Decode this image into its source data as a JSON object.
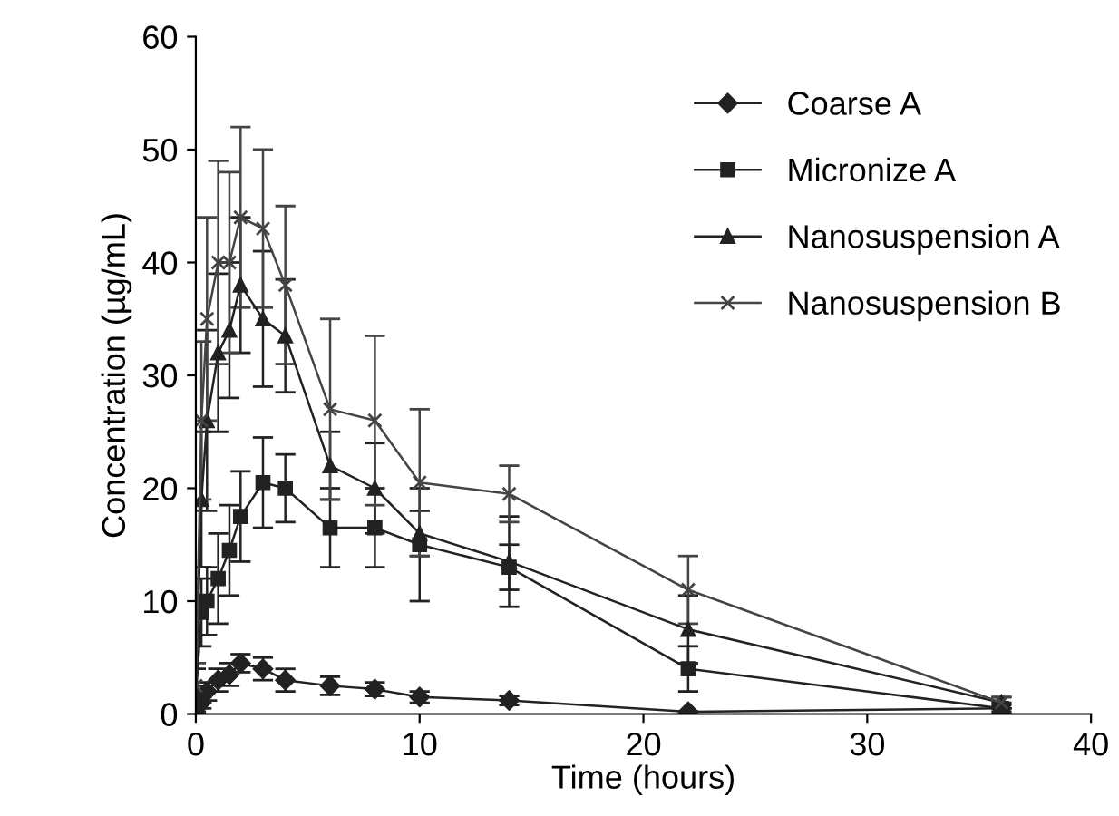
{
  "chart_data": {
    "type": "line",
    "xlabel": "Time (hours)",
    "ylabel": "Concentration (µg/mL)",
    "x": [
      0,
      0.25,
      0.5,
      1,
      1.5,
      2,
      3,
      4,
      6,
      8,
      10,
      14,
      22,
      36
    ],
    "series": [
      {
        "name": "Coarse A",
        "color": "#222222",
        "marker": "diamond",
        "values": [
          0.5,
          1,
          2,
          3,
          3.5,
          4.5,
          4,
          3,
          2.5,
          2.2,
          1.5,
          1.2,
          0.2,
          0.5
        ],
        "errors": [
          0.3,
          0.5,
          0.8,
          1,
          1,
          0.8,
          1,
          1,
          0.8,
          0.6,
          0.5,
          0.4,
          null,
          0.3
        ]
      },
      {
        "name": "Micronize A",
        "color": "#222222",
        "marker": "square",
        "values": [
          1.5,
          9,
          10,
          12,
          14.5,
          17.5,
          20.5,
          20,
          16.5,
          16.5,
          15,
          13,
          4,
          0.5
        ],
        "errors": [
          1,
          3,
          3,
          4,
          4,
          4,
          4,
          3,
          3.5,
          3.5,
          5,
          2,
          2,
          0.5
        ]
      },
      {
        "name": "Nanosuspension A",
        "color": "#222222",
        "marker": "triangle",
        "values": [
          2,
          19,
          26,
          32,
          34,
          38,
          35,
          33.5,
          22,
          20,
          16,
          13.5,
          7.5,
          1
        ],
        "errors": [
          2,
          6,
          8,
          7,
          6,
          6,
          6,
          5,
          3,
          4,
          2,
          4,
          3,
          0.5
        ]
      },
      {
        "name": "Nanosuspension B",
        "color": "#444444",
        "marker": "cross",
        "values": [
          2.5,
          26,
          35,
          40,
          40,
          44,
          43,
          38,
          27,
          26,
          20.5,
          19.5,
          11,
          1
        ],
        "errors": [
          2,
          7,
          9,
          9,
          8,
          8,
          7,
          7,
          8,
          7.5,
          6.5,
          2.5,
          3,
          0.5
        ]
      }
    ],
    "xlim": [
      0,
      40
    ],
    "ylim": [
      0,
      60
    ],
    "xticks": [
      0,
      10,
      20,
      30,
      40
    ],
    "yticks": [
      0,
      10,
      20,
      30,
      40,
      50,
      60
    ],
    "grid": false,
    "legend": "right",
    "line_style": "solid"
  }
}
